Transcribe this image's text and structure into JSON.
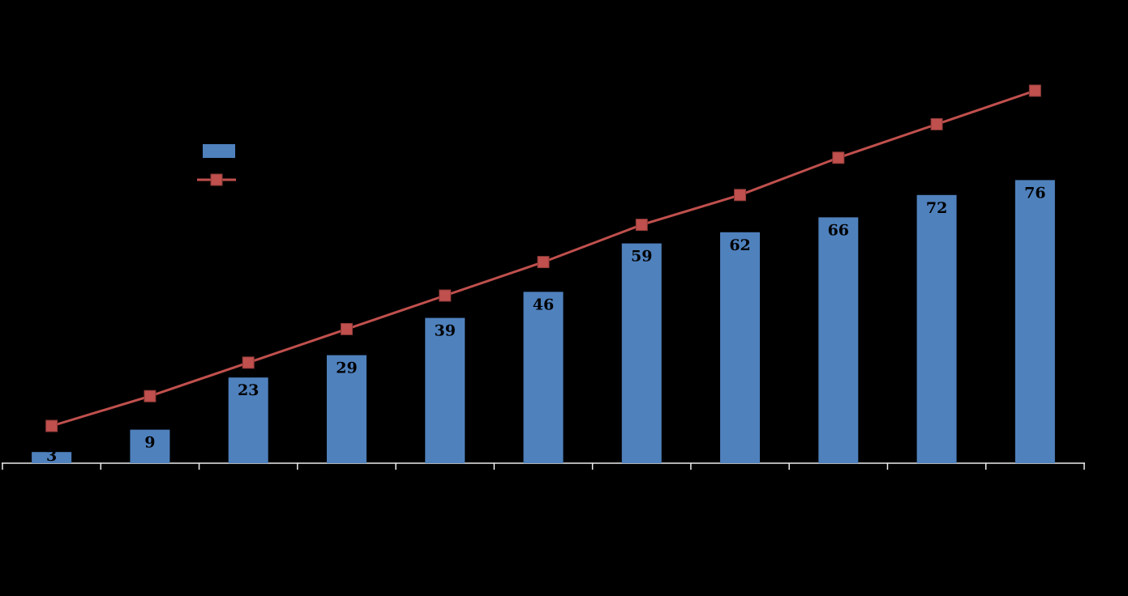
{
  "chart_data": {
    "type": "combo",
    "background_color": "#000000",
    "axis_color": "#EDEDED",
    "label_color": "#000000",
    "categories": [
      "",
      "",
      "",
      "",
      "",
      "",
      "",
      "",
      "",
      "",
      ""
    ],
    "series": [
      {
        "name": "bar-series",
        "type": "bar",
        "color": "#4F81BD",
        "values": [
          3,
          9,
          23,
          29,
          39,
          46,
          59,
          62,
          66,
          72,
          76
        ],
        "data_labels": [
          "3",
          "9",
          "23",
          "29",
          "39",
          "46",
          "59",
          "62",
          "66",
          "72",
          "76"
        ]
      },
      {
        "name": "line-series",
        "type": "line",
        "color": "#C0504D",
        "marker": "square",
        "marker_edge": "#8C3A38",
        "values_estimated": [
          10,
          18,
          27,
          36,
          45,
          54,
          64,
          72,
          82,
          91,
          100
        ]
      }
    ],
    "ylim": [
      0,
      110
    ],
    "gridlines": false,
    "x_tick_count": 12,
    "legend": {
      "visible": true,
      "position": "inside-upper-left",
      "entries": [
        {
          "series": "bar-series",
          "swatch": "filled-rect",
          "label": ""
        },
        {
          "series": "line-series",
          "swatch": "line-with-square-marker",
          "label": ""
        }
      ]
    }
  }
}
